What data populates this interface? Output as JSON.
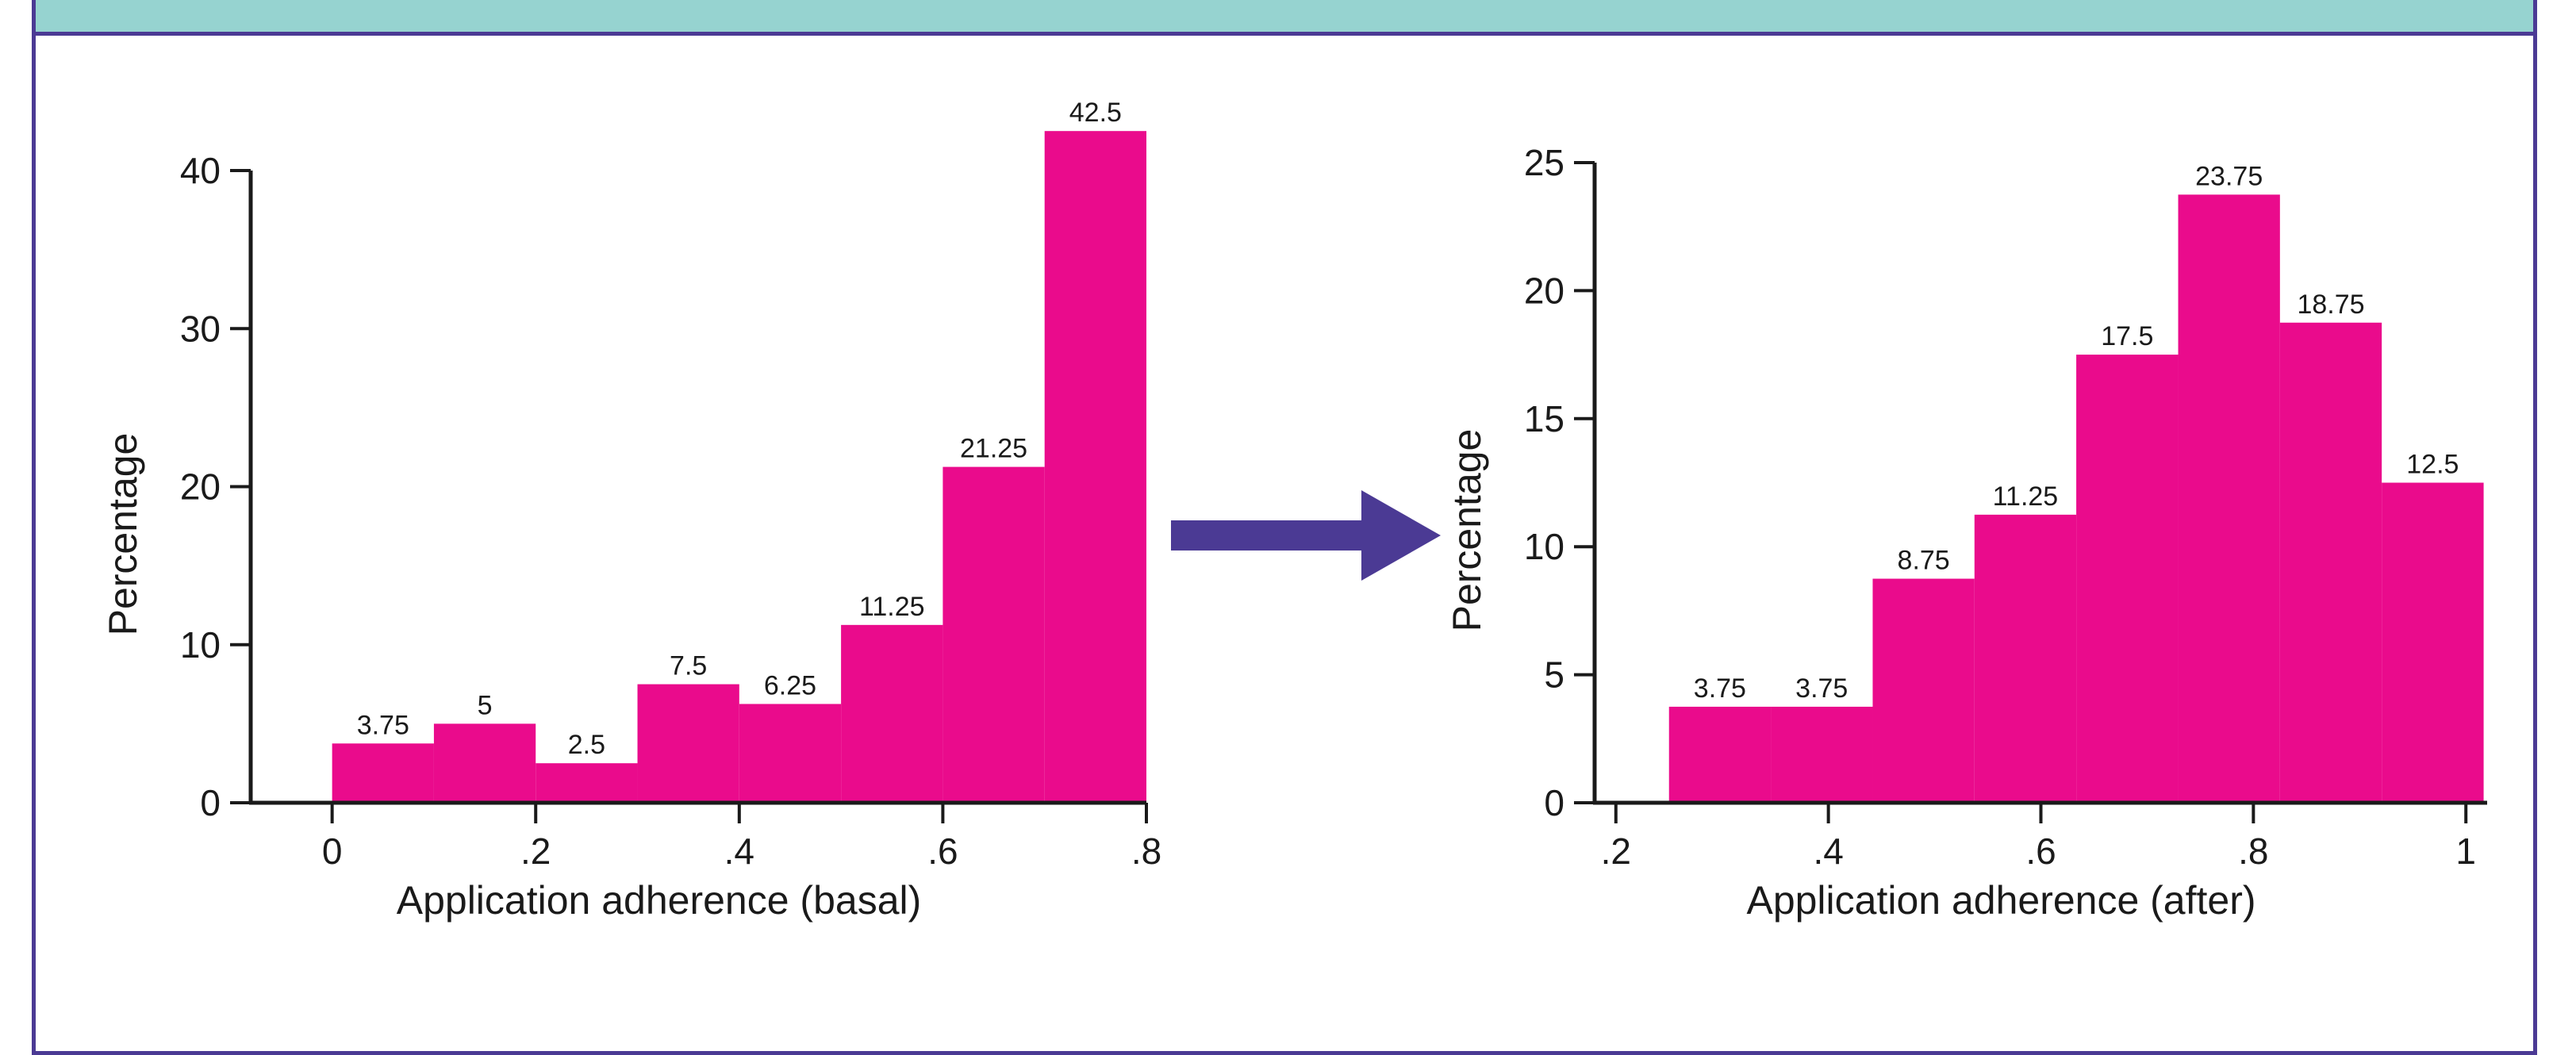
{
  "colors": {
    "bar": "#ea0b8c",
    "frame": "#4b3a94",
    "header": "#96d3d0",
    "arrow": "#4b3a94",
    "axis": "#1a1a1a"
  },
  "chart_data": [
    {
      "type": "bar",
      "title": "",
      "xlabel": "Application adherence (basal)",
      "ylabel": "Percentage",
      "xlim": [
        -0.08,
        0.8
      ],
      "ylim": [
        0,
        40
      ],
      "xticks": [
        0,
        0.2,
        0.4,
        0.6,
        0.8
      ],
      "xtick_labels": [
        "0",
        ".2",
        ".4",
        ".6",
        ".8"
      ],
      "yticks": [
        0,
        10,
        20,
        30,
        40
      ],
      "ytick_labels": [
        "0",
        "10",
        "20",
        "30",
        "40"
      ],
      "bins": [
        {
          "x0": 0.0,
          "x1": 0.1,
          "value": 3.75,
          "label": "3.75"
        },
        {
          "x0": 0.1,
          "x1": 0.2,
          "value": 5,
          "label": "5"
        },
        {
          "x0": 0.2,
          "x1": 0.3,
          "value": 2.5,
          "label": "2.5"
        },
        {
          "x0": 0.3,
          "x1": 0.4,
          "value": 7.5,
          "label": "7.5"
        },
        {
          "x0": 0.4,
          "x1": 0.5,
          "value": 6.25,
          "label": "6.25"
        },
        {
          "x0": 0.5,
          "x1": 0.6,
          "value": 11.25,
          "label": "11.25"
        },
        {
          "x0": 0.6,
          "x1": 0.7,
          "value": 21.25,
          "label": "21.25"
        },
        {
          "x0": 0.7,
          "x1": 0.8,
          "value": 42.5,
          "label": "42.5"
        }
      ],
      "grid": false
    },
    {
      "type": "bar",
      "title": "",
      "xlabel": "Application adherence (after)",
      "ylabel": "Percentage",
      "xlim": [
        0.18,
        1.02
      ],
      "ylim": [
        0,
        25
      ],
      "xticks": [
        0.2,
        0.4,
        0.6,
        0.8,
        1.0
      ],
      "xtick_labels": [
        ".2",
        ".4",
        ".6",
        ".8",
        "1"
      ],
      "yticks": [
        0,
        5,
        10,
        15,
        20,
        25
      ],
      "ytick_labels": [
        "0",
        "5",
        "10",
        "15",
        "20",
        "25"
      ],
      "bins": [
        {
          "x0": 0.25,
          "x1": 0.3458,
          "value": 3.75,
          "label": "3.75"
        },
        {
          "x0": 0.3458,
          "x1": 0.4417,
          "value": 3.75,
          "label": "3.75"
        },
        {
          "x0": 0.4417,
          "x1": 0.5375,
          "value": 8.75,
          "label": "8.75"
        },
        {
          "x0": 0.5375,
          "x1": 0.6333,
          "value": 11.25,
          "label": "11.25"
        },
        {
          "x0": 0.6333,
          "x1": 0.7292,
          "value": 17.5,
          "label": "17.5"
        },
        {
          "x0": 0.7292,
          "x1": 0.825,
          "value": 23.75,
          "label": "23.75"
        },
        {
          "x0": 0.825,
          "x1": 0.9208,
          "value": 18.75,
          "label": "18.75"
        },
        {
          "x0": 0.9208,
          "x1": 1.0167,
          "value": 12.5,
          "label": "12.5"
        }
      ],
      "grid": false
    }
  ]
}
